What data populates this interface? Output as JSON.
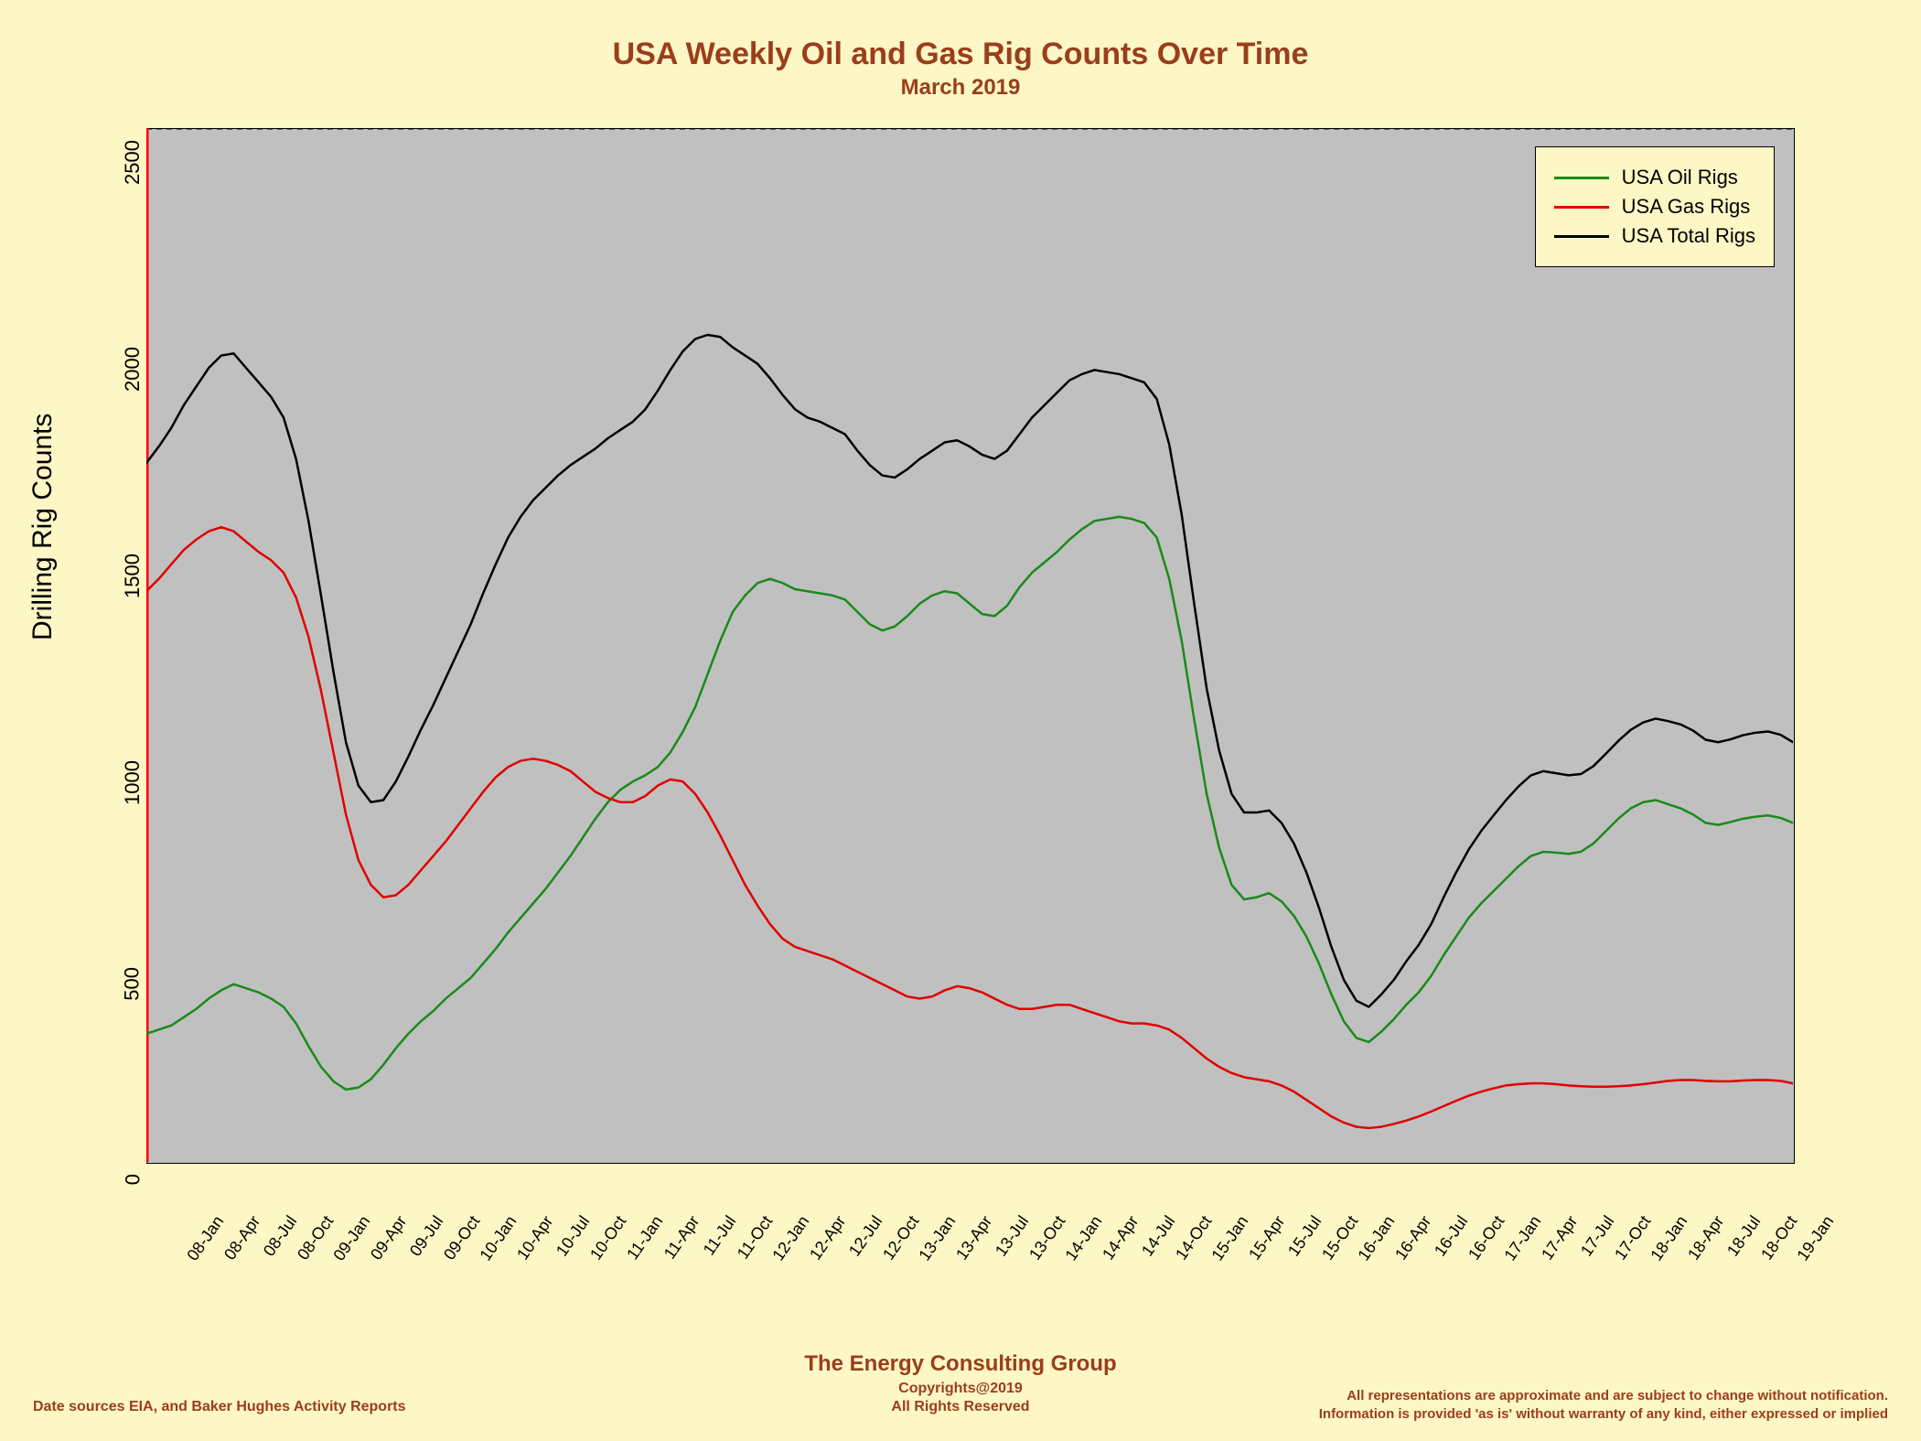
{
  "title": "USA Weekly Oil and Gas Rig Counts Over Time",
  "subtitle": "March 2019",
  "ylabel": "Drilling Rig Counts",
  "chart": {
    "type": "line",
    "plot_bg": "#c0c0c0",
    "page_bg": "#fdf6c5",
    "border_color": "#000000",
    "top_border_dashed": true,
    "left_axis_color": "#ff0000",
    "ylim": [
      0,
      2500
    ],
    "ytick_step": 500,
    "ytick_labels": [
      "0",
      "500",
      "1000",
      "1500",
      "2000",
      "2500"
    ],
    "xtick_labels": [
      "08-Jan",
      "08-Apr",
      "08-Jul",
      "08-Oct",
      "09-Jan",
      "09-Apr",
      "09-Jul",
      "09-Oct",
      "10-Jan",
      "10-Apr",
      "10-Jul",
      "10-Oct",
      "11-Jan",
      "11-Apr",
      "11-Jul",
      "11-Oct",
      "12-Jan",
      "12-Apr",
      "12-Jul",
      "12-Oct",
      "13-Jan",
      "13-Apr",
      "13-Jul",
      "13-Oct",
      "14-Jan",
      "14-Apr",
      "14-Jul",
      "14-Oct",
      "15-Jan",
      "15-Apr",
      "15-Jul",
      "15-Oct",
      "16-Jan",
      "16-Apr",
      "16-Jul",
      "16-Oct",
      "17-Jan",
      "17-Apr",
      "17-Jul",
      "17-Oct",
      "18-Jan",
      "18-Apr",
      "18-Jul",
      "18-Oct",
      "19-Jan"
    ],
    "line_width": 2.5,
    "series": [
      {
        "name": "USA Oil Rigs",
        "color": "#1a8a1a",
        "values": [
          310,
          320,
          330,
          350,
          370,
          395,
          415,
          430,
          420,
          410,
          395,
          375,
          335,
          280,
          230,
          195,
          175,
          180,
          200,
          235,
          275,
          310,
          340,
          365,
          395,
          420,
          445,
          480,
          515,
          555,
          590,
          625,
          660,
          700,
          740,
          785,
          830,
          870,
          900,
          920,
          935,
          955,
          990,
          1040,
          1100,
          1180,
          1260,
          1330,
          1370,
          1400,
          1410,
          1400,
          1385,
          1380,
          1375,
          1370,
          1360,
          1330,
          1300,
          1285,
          1295,
          1320,
          1350,
          1370,
          1380,
          1375,
          1350,
          1325,
          1320,
          1345,
          1390,
          1425,
          1450,
          1475,
          1505,
          1530,
          1550,
          1555,
          1560,
          1555,
          1545,
          1510,
          1410,
          1260,
          1070,
          890,
          760,
          670,
          635,
          640,
          650,
          630,
          595,
          545,
          480,
          405,
          340,
          300,
          290,
          315,
          345,
          380,
          410,
          450,
          500,
          545,
          590,
          625,
          655,
          685,
          715,
          740,
          750,
          748,
          745,
          750,
          770,
          800,
          830,
          855,
          870,
          875,
          865,
          855,
          840,
          820,
          815,
          822,
          830,
          835,
          838,
          832,
          820
        ]
      },
      {
        "name": "USA Gas Rigs",
        "color": "#e00000",
        "values": [
          1380,
          1410,
          1445,
          1480,
          1505,
          1525,
          1535,
          1525,
          1500,
          1475,
          1455,
          1425,
          1365,
          1270,
          1140,
          990,
          840,
          730,
          670,
          640,
          645,
          670,
          705,
          740,
          775,
          815,
          855,
          895,
          930,
          955,
          970,
          975,
          970,
          960,
          945,
          920,
          895,
          880,
          870,
          870,
          885,
          910,
          925,
          920,
          890,
          845,
          790,
          730,
          670,
          620,
          575,
          540,
          520,
          510,
          500,
          490,
          475,
          460,
          445,
          430,
          415,
          400,
          395,
          400,
          415,
          425,
          420,
          410,
          395,
          380,
          370,
          370,
          375,
          380,
          380,
          370,
          360,
          350,
          340,
          335,
          335,
          330,
          320,
          300,
          275,
          250,
          230,
          215,
          205,
          200,
          195,
          185,
          170,
          150,
          130,
          110,
          95,
          85,
          82,
          85,
          92,
          100,
          110,
          122,
          135,
          148,
          160,
          170,
          178,
          185,
          188,
          190,
          190,
          188,
          185,
          183,
          182,
          182,
          183,
          185,
          188,
          192,
          196,
          198,
          198,
          196,
          195,
          195,
          197,
          198,
          198,
          196,
          190
        ]
      },
      {
        "name": "USA Total Rigs",
        "color": "#000000",
        "values": [
          1690,
          1730,
          1775,
          1830,
          1875,
          1920,
          1950,
          1955,
          1920,
          1885,
          1850,
          1800,
          1700,
          1550,
          1370,
          1185,
          1015,
          910,
          870,
          875,
          920,
          980,
          1045,
          1105,
          1170,
          1235,
          1300,
          1375,
          1445,
          1510,
          1560,
          1600,
          1630,
          1660,
          1685,
          1705,
          1725,
          1750,
          1770,
          1790,
          1820,
          1865,
          1915,
          1960,
          1990,
          2000,
          1995,
          1970,
          1950,
          1930,
          1895,
          1855,
          1820,
          1800,
          1790,
          1775,
          1760,
          1720,
          1685,
          1660,
          1655,
          1675,
          1700,
          1720,
          1740,
          1745,
          1730,
          1710,
          1700,
          1720,
          1760,
          1800,
          1830,
          1860,
          1890,
          1905,
          1915,
          1910,
          1905,
          1895,
          1885,
          1845,
          1735,
          1565,
          1350,
          1145,
          995,
          890,
          845,
          845,
          850,
          820,
          770,
          700,
          615,
          520,
          440,
          390,
          375,
          405,
          440,
          485,
          525,
          575,
          640,
          700,
          755,
          800,
          838,
          875,
          908,
          935,
          945,
          940,
          935,
          938,
          957,
          987,
          1018,
          1045,
          1063,
          1072,
          1066,
          1058,
          1043,
          1021,
          1015,
          1022,
          1032,
          1038,
          1041,
          1033,
          1015
        ]
      }
    ],
    "legend": {
      "position": "upper-right",
      "bg": "#fdf6c5",
      "border": "#000000",
      "fontsize": 22,
      "items": [
        "USA Oil Rigs",
        "USA Gas Rigs",
        "USA Total Rigs"
      ]
    }
  },
  "footer": {
    "group_name": "The Energy Consulting Group",
    "copyright": "Copyrights@2019",
    "rights": "All Rights Reserved",
    "left": "Date sources EIA, and Baker Hughes Activity Reports",
    "right1": "All representations are approximate and are subject to change without notification.",
    "right2": "Information is provided 'as is' without warranty of any kind, either expressed or implied"
  },
  "colors": {
    "title_color": "#9a3e1c"
  }
}
